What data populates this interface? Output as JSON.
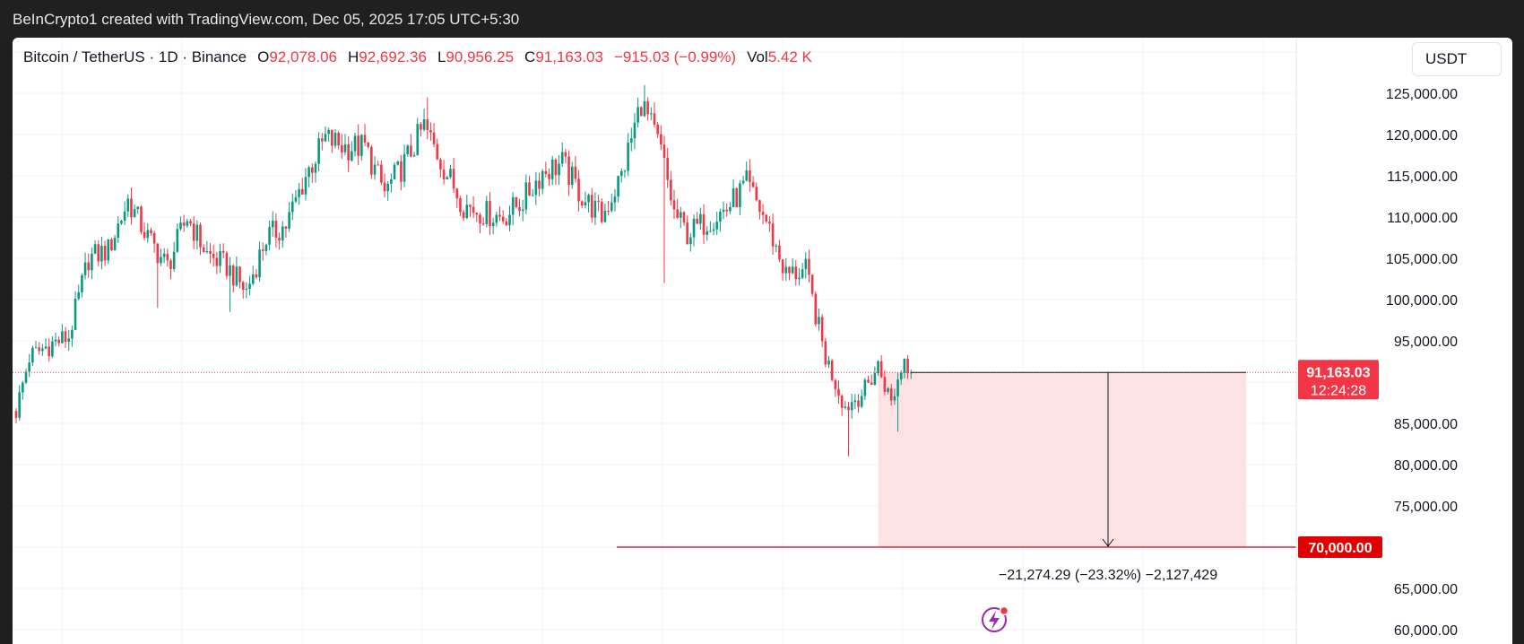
{
  "topbar": {
    "text": "BeInCrypto1 created with TradingView.com, Dec 05, 2025 17:05 UTC+5:30"
  },
  "header": {
    "symbol": "Bitcoin / TetherUS · 1D · Binance",
    "open_label": "O",
    "open": "92,078.06",
    "high_label": "H",
    "high": "92,692.36",
    "low_label": "L",
    "low": "90,956.25",
    "close_label": "C",
    "close": "91,163.03",
    "change": "−915.03 (−0.99%)",
    "vol_label": "Vol",
    "vol": "5.42 K"
  },
  "currency_button": "USDT",
  "colors": {
    "up": "#089981",
    "down": "#f23645",
    "grid": "#f0f3fa",
    "target_line": "#d0021b",
    "zone_fill": "#fde2e4",
    "price_label_bg": "#f23645",
    "target_label_bg": "#e00000"
  },
  "chart_data": {
    "type": "candlestick",
    "series_name": "Bitcoin / TetherUS",
    "y_axis_ticks": [
      "125,000.00",
      "120,000.00",
      "115,000.00",
      "110,000.00",
      "105,000.00",
      "100,000.00",
      "95,000.00",
      "85,000.00",
      "80,000.00",
      "75,000.00",
      "65,000.00",
      "60,000.00"
    ],
    "y_tick_values": [
      125000,
      120000,
      115000,
      110000,
      105000,
      100000,
      95000,
      85000,
      80000,
      75000,
      65000,
      60000
    ],
    "ylim": [
      59000,
      133000
    ],
    "last_price": {
      "value": 91163.03,
      "label": "91,163.03",
      "countdown": "12:24:28"
    },
    "target": {
      "value": 70000,
      "label": "70,000.00"
    },
    "measurement": {
      "text": "−21,274.29 (−23.32%) −2,127,429"
    },
    "anchors": [
      {
        "i": 0,
        "v": 86500
      },
      {
        "i": 4,
        "v": 93000
      },
      {
        "i": 10,
        "v": 94500
      },
      {
        "i": 16,
        "v": 95500
      },
      {
        "i": 22,
        "v": 105000
      },
      {
        "i": 28,
        "v": 106000
      },
      {
        "i": 34,
        "v": 112000
      },
      {
        "i": 40,
        "v": 107500
      },
      {
        "i": 46,
        "v": 104000
      },
      {
        "i": 52,
        "v": 110000
      },
      {
        "i": 58,
        "v": 105500
      },
      {
        "i": 64,
        "v": 104000
      },
      {
        "i": 70,
        "v": 101000
      },
      {
        "i": 76,
        "v": 107500
      },
      {
        "i": 82,
        "v": 109000
      },
      {
        "i": 88,
        "v": 115000
      },
      {
        "i": 94,
        "v": 119500
      },
      {
        "i": 100,
        "v": 118500
      },
      {
        "i": 106,
        "v": 118500
      },
      {
        "i": 112,
        "v": 113000
      },
      {
        "i": 118,
        "v": 116500
      },
      {
        "i": 124,
        "v": 121000
      },
      {
        "i": 130,
        "v": 116000
      },
      {
        "i": 136,
        "v": 111500
      },
      {
        "i": 142,
        "v": 110500
      },
      {
        "i": 148,
        "v": 110000
      },
      {
        "i": 154,
        "v": 112000
      },
      {
        "i": 160,
        "v": 115500
      },
      {
        "i": 166,
        "v": 116500
      },
      {
        "i": 172,
        "v": 112500
      },
      {
        "i": 178,
        "v": 110000
      },
      {
        "i": 184,
        "v": 115000
      },
      {
        "i": 190,
        "v": 124000
      },
      {
        "i": 196,
        "v": 118000
      },
      {
        "i": 200,
        "v": 110500
      },
      {
        "i": 204,
        "v": 108000
      },
      {
        "i": 210,
        "v": 109500
      },
      {
        "i": 216,
        "v": 111000
      },
      {
        "i": 222,
        "v": 114000
      },
      {
        "i": 228,
        "v": 109500
      },
      {
        "i": 234,
        "v": 103000
      },
      {
        "i": 240,
        "v": 103500
      },
      {
        "i": 246,
        "v": 93000
      },
      {
        "i": 252,
        "v": 87000
      },
      {
        "i": 258,
        "v": 89000
      },
      {
        "i": 262,
        "v": 92000
      },
      {
        "i": 266,
        "v": 87500
      },
      {
        "i": 270,
        "v": 93000
      },
      {
        "i": 272,
        "v": 91163
      }
    ],
    "spikes": [
      {
        "i": 43,
        "v": 99000,
        "side": "low"
      },
      {
        "i": 65,
        "v": 98500,
        "side": "low"
      },
      {
        "i": 125,
        "v": 124500,
        "side": "high"
      },
      {
        "i": 191,
        "v": 126000,
        "side": "high"
      },
      {
        "i": 197,
        "v": 102000,
        "side": "low"
      },
      {
        "i": 253,
        "v": 81000,
        "side": "low"
      },
      {
        "i": 268,
        "v": 84000,
        "side": "low"
      }
    ]
  }
}
